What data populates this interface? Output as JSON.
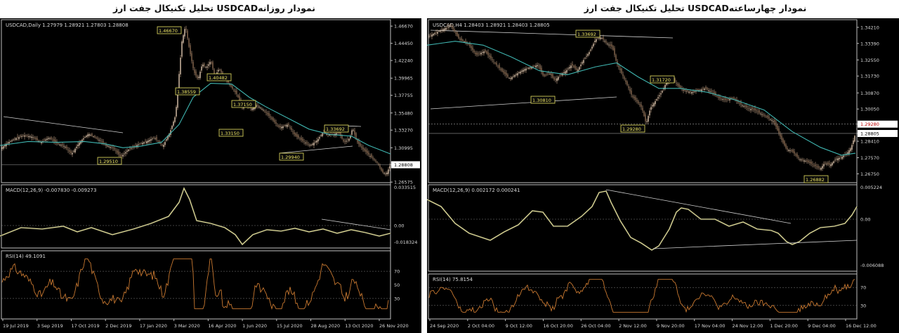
{
  "left": {
    "title": "تحلیل تکنیکال جفت ارز  USDCADنمودار روزانه",
    "header": "USDCAD,Daily  1.27979 1.28921 1.27803 1.28808",
    "price_axis": [
      "1.46670",
      "1.44450",
      "1.42240",
      "1.39965",
      "1.37755",
      "1.35480",
      "1.33270",
      "1.30995",
      "1.28808",
      "1.26575"
    ],
    "current_price": "1.28808",
    "annotations": [
      "1.46670",
      "1.38559",
      "1.40482",
      "1.37150",
      "1.33150",
      "1.29510",
      "1.29940",
      "1.33692"
    ],
    "macd_label": "MACD(12,26,9) -0.007830 -0.009273",
    "macd_axis": [
      "0.033515",
      "0.00",
      "-0.018324"
    ],
    "rsi_label": "RSI(14) 49.1091",
    "rsi_axis": [
      "70",
      "50",
      "30"
    ],
    "dates": [
      "19 Jul 2019",
      "3 Sep 2019",
      "17 Oct 2019",
      "2 Dec 2019",
      "17 Jan 2020",
      "3 Mar 2020",
      "16 Apr 2020",
      "1 Jun 2020",
      "15 Jul 2020",
      "28 Aug 2020",
      "13 Oct 2020",
      "26 Nov 2020"
    ]
  },
  "right": {
    "title": "تحلیل تکنیکال جفت ارز  USDCADنمودار چهارساعته",
    "header": "USDCAD,H4  1.28403 1.28921 1.28403 1.28805",
    "price_axis": [
      "1.34210",
      "1.33390",
      "1.32550",
      "1.31730",
      "1.30870",
      "1.30050",
      "1.29280",
      "1.28805",
      "1.28410",
      "1.27570",
      "1.26750"
    ],
    "current_price": "1.28805",
    "level_price": "1.29280",
    "annotations": [
      "1.33692",
      "1.30810",
      "1.31720",
      "1.29280",
      "1.26882"
    ],
    "macd_label": "MACD(12,26,9) 0.002172 0.000241",
    "macd_axis": [
      "0.005224",
      "0.00",
      "-0.006088"
    ],
    "rsi_label": "RSI(14) 75.8154",
    "rsi_axis": [
      "70",
      "30"
    ],
    "dates": [
      "24 Sep 2020",
      "2 Oct 04:00",
      "9 Oct 12:00",
      "16 Oct 20:00",
      "26 Oct 04:00",
      "2 Nov 12:00",
      "9 Nov 20:00",
      "17 Nov 04:00",
      "24 Nov 12:00",
      "1 Dec 20:00",
      "9 Dec 04:00",
      "16 Dec 12:00"
    ]
  },
  "chart_data": [
    {
      "type": "line",
      "title": "USDCAD,Daily",
      "xlabel": "",
      "ylabel": "",
      "x": [
        "19 Jul 2019",
        "3 Sep 2019",
        "17 Oct 2019",
        "2 Dec 2019",
        "17 Jan 2020",
        "3 Mar 2020",
        "16 Apr 2020",
        "1 Jun 2020",
        "15 Jul 2020",
        "28 Aug 2020",
        "13 Oct 2020",
        "26 Nov 2020"
      ],
      "ylim": [
        1.265,
        1.475
      ],
      "grid": false,
      "series": [
        {
          "name": "USDCAD,Daily",
          "values": [
            [
              0,
              1.308
            ],
            [
              10,
              1.316
            ],
            [
              22,
              1.322
            ],
            [
              34,
              1.326
            ],
            [
              46,
              1.324
            ],
            [
              58,
              1.317
            ],
            [
              70,
              1.323
            ],
            [
              82,
              1.315
            ],
            [
              92,
              1.312
            ],
            [
              102,
              1.302
            ],
            [
              114,
              1.318
            ],
            [
              126,
              1.328
            ],
            [
              138,
              1.322
            ],
            [
              150,
              1.314
            ],
            [
              162,
              1.309
            ],
            [
              172,
              1.298
            ],
            [
              182,
              1.307
            ],
            [
              196,
              1.314
            ],
            [
              208,
              1.318
            ],
            [
              220,
              1.323
            ],
            [
              232,
              1.312
            ],
            [
              242,
              1.33
            ],
            [
              250,
              1.352
            ],
            [
              255,
              1.405
            ],
            [
              259,
              1.447
            ],
            [
              264,
              1.467
            ],
            [
              270,
              1.435
            ],
            [
              276,
              1.408
            ],
            [
              282,
              1.398
            ],
            [
              288,
              1.418
            ],
            [
              294,
              1.413
            ],
            [
              300,
              1.422
            ],
            [
              306,
              1.402
            ],
            [
              312,
              1.412
            ],
            [
              318,
              1.402
            ],
            [
              324,
              1.395
            ],
            [
              332,
              1.385
            ],
            [
              338,
              1.378
            ],
            [
              344,
              1.362
            ],
            [
              350,
              1.366
            ],
            [
              358,
              1.36
            ],
            [
              366,
              1.365
            ],
            [
              376,
              1.358
            ],
            [
              386,
              1.348
            ],
            [
              398,
              1.336
            ],
            [
              410,
              1.34
            ],
            [
              420,
              1.326
            ],
            [
              432,
              1.318
            ],
            [
              442,
              1.313
            ],
            [
              452,
              1.32
            ],
            [
              460,
              1.33
            ],
            [
              466,
              1.328
            ],
            [
              474,
              1.327
            ],
            [
              482,
              1.33
            ],
            [
              490,
              1.317
            ],
            [
              498,
              1.322
            ],
            [
              502,
              1.336
            ],
            [
              508,
              1.318
            ],
            [
              516,
              1.309
            ],
            [
              524,
              1.302
            ],
            [
              532,
              1.295
            ],
            [
              538,
              1.29
            ],
            [
              544,
              1.279
            ],
            [
              550,
              1.276
            ],
            [
              556,
              1.288
            ]
          ]
        },
        {
          "name": "",
          "values": [
            [
              0,
              1.313
            ],
            [
              40,
              1.318
            ],
            [
              80,
              1.317
            ],
            [
              120,
              1.318
            ],
            [
              150,
              1.315
            ],
            [
              175,
              1.31
            ],
            [
              200,
              1.312
            ],
            [
              230,
              1.317
            ],
            [
              255,
              1.34
            ],
            [
              275,
              1.375
            ],
            [
              300,
              1.393
            ],
            [
              330,
              1.392
            ],
            [
              355,
              1.375
            ],
            [
              380,
              1.362
            ],
            [
              410,
              1.348
            ],
            [
              440,
              1.334
            ],
            [
              470,
              1.327
            ],
            [
              500,
              1.325
            ],
            [
              525,
              1.313
            ],
            [
              556,
              1.302
            ]
          ]
        }
      ]
    },
    {
      "type": "line",
      "title": "USDCAD,H4",
      "xlabel": "",
      "ylabel": "",
      "x": [
        "24 Sep 2020",
        "2 Oct 04:00",
        "9 Oct 12:00",
        "16 Oct 20:00",
        "26 Oct 04:00",
        "2 Nov 12:00",
        "9 Nov 20:00",
        "17 Nov 04:00",
        "24 Nov 12:00",
        "1 Dec 20:00",
        "9 Dec 04:00",
        "16 Dec 12:00"
      ],
      "ylim": [
        1.263,
        1.346
      ],
      "grid": false,
      "series": [
        {
          "name": "USDCAD,H4",
          "values": [
            [
              0,
              1.337
            ],
            [
              10,
              1.339
            ],
            [
              22,
              1.341
            ],
            [
              34,
              1.343
            ],
            [
              46,
              1.336
            ],
            [
              58,
              1.334
            ],
            [
              70,
              1.328
            ],
            [
              82,
              1.33
            ],
            [
              94,
              1.325
            ],
            [
              106,
              1.32
            ],
            [
              118,
              1.316
            ],
            [
              130,
              1.319
            ],
            [
              140,
              1.321
            ],
            [
              150,
              1.322
            ],
            [
              158,
              1.323
            ],
            [
              166,
              1.317
            ],
            [
              174,
              1.319
            ],
            [
              182,
              1.315
            ],
            [
              190,
              1.318
            ],
            [
              198,
              1.32
            ],
            [
              206,
              1.323
            ],
            [
              214,
              1.32
            ],
            [
              222,
              1.325
            ],
            [
              232,
              1.33
            ],
            [
              240,
              1.336
            ],
            [
              248,
              1.337
            ],
            [
              256,
              1.334
            ],
            [
              264,
              1.332
            ],
            [
              270,
              1.324
            ],
            [
              278,
              1.318
            ],
            [
              286,
              1.312
            ],
            [
              292,
              1.307
            ],
            [
              300,
              1.304
            ],
            [
              306,
              1.301
            ],
            [
              312,
              1.293
            ],
            [
              318,
              1.301
            ],
            [
              326,
              1.305
            ],
            [
              334,
              1.309
            ],
            [
              342,
              1.315
            ],
            [
              350,
              1.316
            ],
            [
              358,
              1.312
            ],
            [
              366,
              1.31
            ],
            [
              376,
              1.309
            ],
            [
              386,
              1.31
            ],
            [
              396,
              1.311
            ],
            [
              406,
              1.309
            ],
            [
              416,
              1.306
            ],
            [
              426,
              1.305
            ],
            [
              436,
              1.306
            ],
            [
              446,
              1.303
            ],
            [
              456,
              1.301
            ],
            [
              466,
              1.3
            ],
            [
              476,
              1.298
            ],
            [
              486,
              1.296
            ],
            [
              494,
              1.294
            ],
            [
              500,
              1.289
            ],
            [
              506,
              1.284
            ],
            [
              512,
              1.28
            ],
            [
              520,
              1.279
            ],
            [
              530,
              1.275
            ],
            [
              540,
              1.274
            ],
            [
              550,
              1.272
            ],
            [
              560,
              1.27
            ],
            [
              566,
              1.273
            ],
            [
              574,
              1.272
            ],
            [
              582,
              1.275
            ],
            [
              590,
              1.276
            ],
            [
              598,
              1.278
            ],
            [
              604,
              1.281
            ],
            [
              610,
              1.288
            ]
          ]
        },
        {
          "name": "",
          "values": [
            [
              0,
              1.333
            ],
            [
              40,
              1.335
            ],
            [
              80,
              1.333
            ],
            [
              120,
              1.327
            ],
            [
              160,
              1.32
            ],
            [
              200,
              1.318
            ],
            [
              240,
              1.322
            ],
            [
              270,
              1.324
            ],
            [
              300,
              1.317
            ],
            [
              330,
              1.311
            ],
            [
              360,
              1.311
            ],
            [
              400,
              1.309
            ],
            [
              440,
              1.305
            ],
            [
              480,
              1.3
            ],
            [
              520,
              1.289
            ],
            [
              560,
              1.281
            ],
            [
              590,
              1.277
            ],
            [
              610,
              1.278
            ]
          ]
        }
      ]
    }
  ]
}
